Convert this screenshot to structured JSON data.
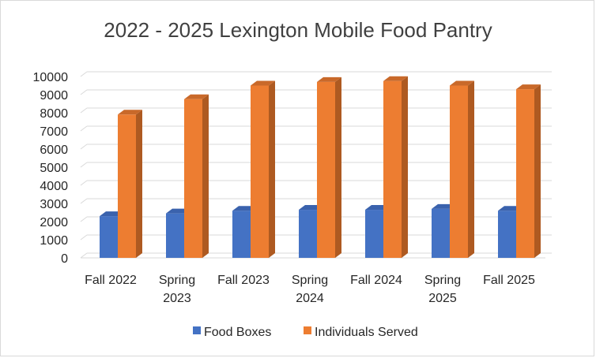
{
  "chart_data": {
    "type": "bar",
    "title": "2022 - 2025 Lexington Mobile Food Pantry",
    "categories": [
      [
        "Fall 2022"
      ],
      [
        "Spring",
        "2023"
      ],
      [
        "Fall 2023"
      ],
      [
        "Spring",
        "2024"
      ],
      [
        "Fall 2024"
      ],
      [
        "Spring",
        "2025"
      ],
      [
        "Fall 2025"
      ]
    ],
    "series": [
      {
        "name": "Food Boxes",
        "values": [
          2300,
          2450,
          2600,
          2650,
          2650,
          2700,
          2600
        ],
        "color": "#4472c4",
        "side": "#2f528f",
        "top": "#3a62ad"
      },
      {
        "name": "Individuals Served",
        "values": [
          7900,
          8750,
          9500,
          9700,
          9750,
          9500,
          9300
        ],
        "color": "#ed7d31",
        "side": "#ae5a21",
        "top": "#c9692a"
      }
    ],
    "y_ticks": [
      "0",
      "1000",
      "2000",
      "3000",
      "4000",
      "5000",
      "6000",
      "7000",
      "8000",
      "9000",
      "10000"
    ],
    "ylim": [
      0,
      10000
    ],
    "grid": true,
    "legend_position": "bottom"
  }
}
